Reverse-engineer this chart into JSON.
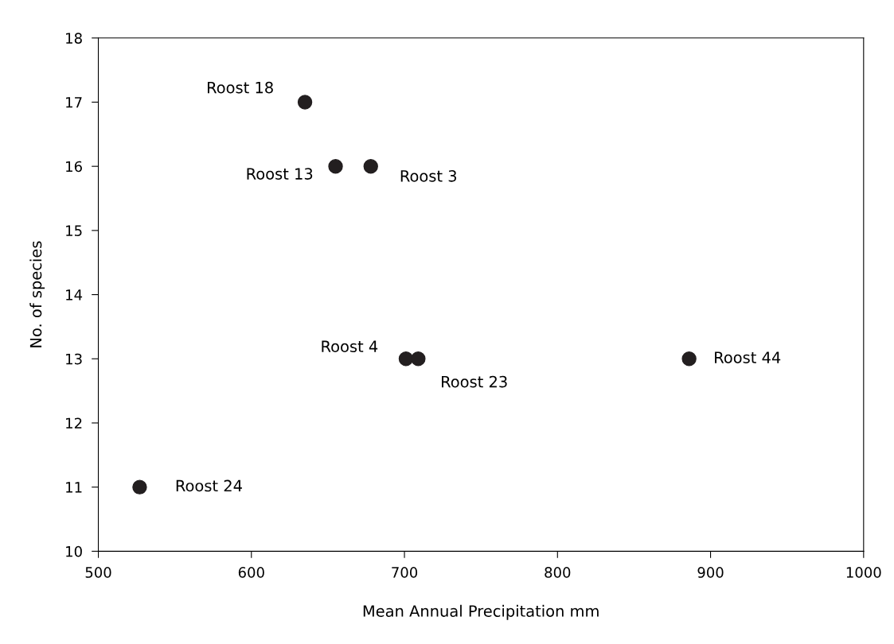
{
  "chart_data": {
    "type": "scatter",
    "xlabel": "Mean Annual Precipitation mm",
    "ylabel": "No. of species",
    "x": [
      635,
      655,
      678,
      701,
      709,
      886,
      527
    ],
    "series": [
      {
        "color": "#231f20",
        "values": [
          17,
          16,
          16,
          13,
          13,
          13,
          11
        ]
      }
    ],
    "marker": "circle",
    "grid": false,
    "legend": false,
    "xlim": [
      500,
      1000
    ],
    "xticks": [
      500,
      600,
      700,
      800,
      900,
      1000
    ],
    "ylim": [
      10,
      18
    ],
    "yticks": [
      10,
      11,
      12,
      13,
      14,
      15,
      16,
      17,
      18
    ],
    "annotations": [
      {
        "text": "Roost 18",
        "x": 635,
        "y": 17
      },
      {
        "text": "Roost 13",
        "x": 655,
        "y": 16
      },
      {
        "text": "Roost 3",
        "x": 678,
        "y": 16
      },
      {
        "text": "Roost 4",
        "x": 701,
        "y": 13
      },
      {
        "text": "Roost 23",
        "x": 709,
        "y": 13
      },
      {
        "text": "Roost 44",
        "x": 886,
        "y": 13
      },
      {
        "text": "Roost 24",
        "x": 527,
        "y": 11
      }
    ]
  }
}
